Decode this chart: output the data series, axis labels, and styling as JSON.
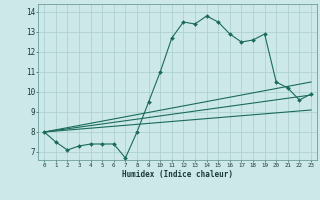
{
  "xlabel": "Humidex (Indice chaleur)",
  "bg_color": "#cce8e8",
  "grid_color": "#aacece",
  "line_color": "#1a6b5a",
  "xlim": [
    -0.5,
    23.5
  ],
  "ylim": [
    6.6,
    14.4
  ],
  "yticks": [
    7,
    8,
    9,
    10,
    11,
    12,
    13,
    14
  ],
  "xticks": [
    0,
    1,
    2,
    3,
    4,
    5,
    6,
    7,
    8,
    9,
    10,
    11,
    12,
    13,
    14,
    15,
    16,
    17,
    18,
    19,
    20,
    21,
    22,
    23
  ],
  "line1_x": [
    0,
    1,
    2,
    3,
    4,
    5,
    6,
    7,
    8,
    9,
    10,
    11,
    12,
    13,
    14,
    15,
    16,
    17,
    18,
    19,
    20,
    21,
    22,
    23
  ],
  "line1_y": [
    8.0,
    7.5,
    7.1,
    7.3,
    7.4,
    7.4,
    7.4,
    6.7,
    8.0,
    9.5,
    11.0,
    12.7,
    13.5,
    13.4,
    13.8,
    13.5,
    12.9,
    12.5,
    12.6,
    12.9,
    10.5,
    10.2,
    9.6,
    9.9
  ],
  "line2_x": [
    0,
    23
  ],
  "line2_y": [
    8.0,
    10.5
  ],
  "line3_x": [
    0,
    23
  ],
  "line3_y": [
    8.0,
    9.85
  ],
  "line4_x": [
    0,
    23
  ],
  "line4_y": [
    8.0,
    9.1
  ]
}
